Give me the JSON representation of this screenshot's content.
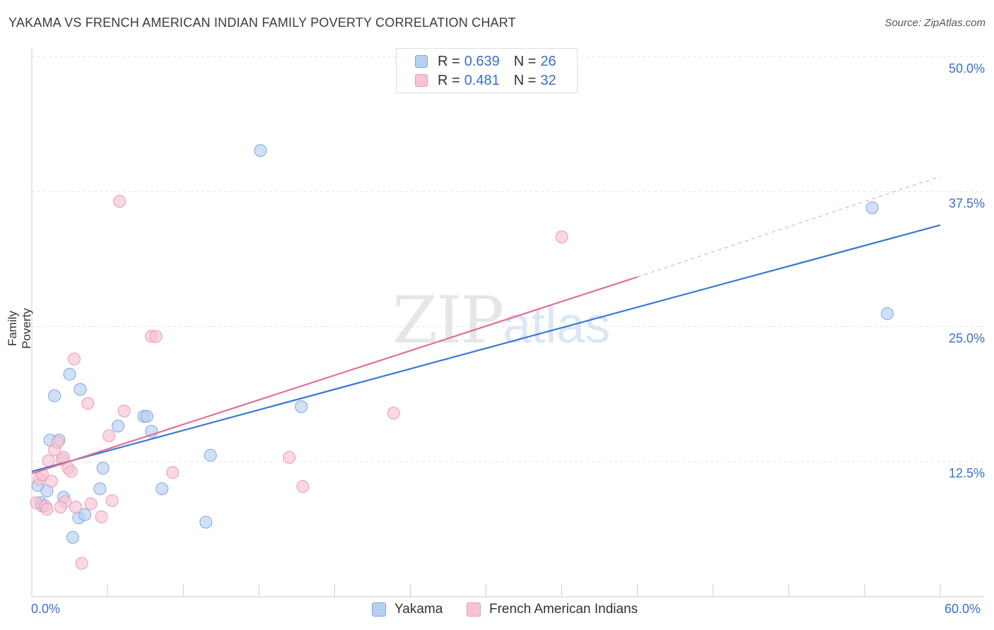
{
  "title": "YAKAMA VS FRENCH AMERICAN INDIAN FAMILY POVERTY CORRELATION CHART",
  "source": "Source: ZipAtlas.com",
  "watermark": {
    "zip": "ZIP",
    "atlas": "atlas"
  },
  "legend": {
    "yakama": {
      "r_label": "R = ",
      "r_value": "0.639",
      "n_label": "N = ",
      "n_value": "26"
    },
    "french": {
      "r_label": "R = ",
      "r_value": "0.481",
      "n_label": "N = ",
      "n_value": "32"
    }
  },
  "colors": {
    "yakama_fill": "#b7d0f2",
    "yakama_stroke": "#7ea6dc",
    "yakama_line": "#3a78d0",
    "french_fill": "#f7c3d4",
    "french_stroke": "#e89ab4",
    "french_line": "#e0709a"
  },
  "chart_data": {
    "type": "scatter",
    "title": "YAKAMA VS FRENCH AMERICAN INDIAN FAMILY POVERTY CORRELATION CHART",
    "xlabel": "",
    "ylabel": "Family Poverty",
    "xlim": [
      0,
      60
    ],
    "ylim": [
      0,
      50
    ],
    "y_ticks": [
      "12.5%",
      "25.0%",
      "37.5%",
      "50.0%"
    ],
    "y_tick_values": [
      12.5,
      25.0,
      37.5,
      50.0
    ],
    "x_tick_labels": [
      "0.0%",
      "60.0%"
    ],
    "x_tick_values": [
      0,
      60
    ],
    "grid": true,
    "legend_position": "bottom",
    "series": [
      {
        "name": "Yakama",
        "points": [
          [
            0.4,
            10.3
          ],
          [
            0.6,
            8.7
          ],
          [
            1.0,
            9.8
          ],
          [
            1.2,
            14.5
          ],
          [
            1.5,
            18.6
          ],
          [
            1.8,
            14.5
          ],
          [
            2.1,
            9.2
          ],
          [
            2.5,
            20.6
          ],
          [
            2.7,
            5.5
          ],
          [
            3.1,
            7.3
          ],
          [
            3.2,
            19.2
          ],
          [
            3.5,
            7.6
          ],
          [
            4.5,
            10.0
          ],
          [
            4.7,
            11.9
          ],
          [
            5.7,
            15.8
          ],
          [
            7.4,
            16.7
          ],
          [
            7.6,
            16.7
          ],
          [
            7.9,
            15.3
          ],
          [
            8.6,
            10.0
          ],
          [
            11.5,
            6.9
          ],
          [
            11.8,
            13.1
          ],
          [
            15.1,
            41.3
          ],
          [
            17.8,
            17.6
          ],
          [
            55.5,
            36.0
          ],
          [
            56.5,
            26.2
          ],
          [
            0.7,
            8.4
          ]
        ],
        "trend": {
          "x": [
            0,
            60
          ],
          "y": [
            11.6,
            34.4
          ]
        }
      },
      {
        "name": "French American Indians",
        "points": [
          [
            0.3,
            8.7
          ],
          [
            0.5,
            10.9
          ],
          [
            0.7,
            11.3
          ],
          [
            0.9,
            8.4
          ],
          [
            1.0,
            8.1
          ],
          [
            1.1,
            12.6
          ],
          [
            1.3,
            10.7
          ],
          [
            1.5,
            13.6
          ],
          [
            1.7,
            14.3
          ],
          [
            2.0,
            12.7
          ],
          [
            2.1,
            12.9
          ],
          [
            2.2,
            8.8
          ],
          [
            2.4,
            11.9
          ],
          [
            2.6,
            11.6
          ],
          [
            2.8,
            22.0
          ],
          [
            2.9,
            8.3
          ],
          [
            3.3,
            3.1
          ],
          [
            3.7,
            17.9
          ],
          [
            3.9,
            8.6
          ],
          [
            4.6,
            7.4
          ],
          [
            5.1,
            14.9
          ],
          [
            5.3,
            8.9
          ],
          [
            5.8,
            36.6
          ],
          [
            6.1,
            17.2
          ],
          [
            7.9,
            24.1
          ],
          [
            8.2,
            24.1
          ],
          [
            9.3,
            11.5
          ],
          [
            17.0,
            12.9
          ],
          [
            17.9,
            10.2
          ],
          [
            23.9,
            17.0
          ],
          [
            35.0,
            33.3
          ],
          [
            1.9,
            8.3
          ]
        ],
        "trend": {
          "x": [
            0,
            40
          ],
          "y": [
            11.4,
            29.6
          ]
        },
        "trend_dashed": {
          "x": [
            40,
            60
          ],
          "y": [
            29.6,
            38.9
          ]
        }
      }
    ]
  },
  "bottom_legend": {
    "yakama": "Yakama",
    "french": "French American Indians"
  }
}
